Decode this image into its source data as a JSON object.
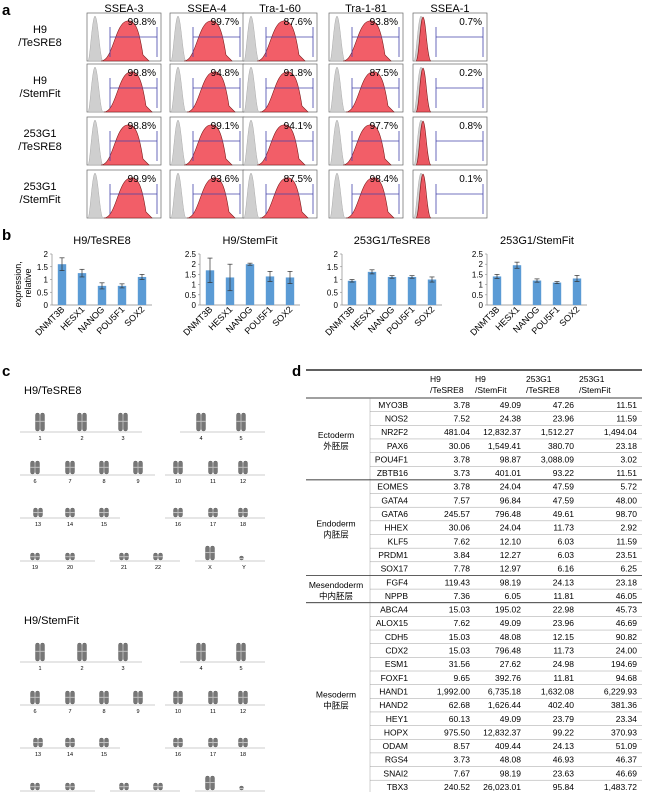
{
  "panel_a": {
    "letter": "a",
    "markers": [
      "SSEA-3",
      "SSEA-4",
      "Tra-1-60",
      "Tra-1-81",
      "SSEA-1"
    ],
    "rows": [
      {
        "label": [
          "H9",
          "/TeSRE8"
        ],
        "values": [
          "99.8%",
          "99.7%",
          "87.6%",
          "93.8%",
          "0.7%"
        ]
      },
      {
        "label": [
          "H9",
          "/StemFit"
        ],
        "values": [
          "99.8%",
          "94.8%",
          "91.8%",
          "87.5%",
          "0.2%"
        ]
      },
      {
        "label": [
          "253G1",
          "/TeSRE8"
        ],
        "values": [
          "98.8%",
          "99.1%",
          "94.1%",
          "97.7%",
          "0.8%"
        ]
      },
      {
        "label": [
          "253G1",
          "/StemFit"
        ],
        "values": [
          "99.9%",
          "93.6%",
          "87.5%",
          "98.4%",
          "0.1%"
        ]
      }
    ],
    "colors": {
      "stained": "#f0424e",
      "control": "#cfcfcf",
      "gate": "#4444aa"
    }
  },
  "panel_b": {
    "letter": "b",
    "ylabel": "expression,\nrelative",
    "color": "#5b9bd5"
  },
  "chart_data": [
    {
      "type": "bar",
      "title": "H9/TeSRE8",
      "categories": [
        "DNMT3B",
        "HESX1",
        "NANOG",
        "POU5F1",
        "SOX2"
      ],
      "values": [
        1.6,
        1.25,
        0.75,
        0.75,
        1.1
      ],
      "errors": [
        0.25,
        0.15,
        0.12,
        0.08,
        0.1
      ],
      "ylim": [
        0,
        2
      ],
      "yticks": [
        "0",
        "0.5",
        "1",
        "1.5",
        "2"
      ]
    },
    {
      "type": "bar",
      "title": "H9/StemFit",
      "categories": [
        "DNMT3B",
        "HESX1",
        "NANOG",
        "POU5F1",
        "SOX2"
      ],
      "values": [
        1.7,
        1.35,
        2.0,
        1.4,
        1.35
      ],
      "errors": [
        0.6,
        0.65,
        0.05,
        0.25,
        0.3
      ],
      "ylim": [
        0,
        2.5
      ],
      "yticks": [
        "0",
        "0.5",
        "1",
        "1.5",
        "2",
        "2.5"
      ]
    },
    {
      "type": "bar",
      "title": "253G1/TeSRE8",
      "categories": [
        "DNMT3B",
        "HESX1",
        "NANOG",
        "POU5F1",
        "SOX2"
      ],
      "values": [
        0.95,
        1.3,
        1.1,
        1.1,
        1.0
      ],
      "errors": [
        0.05,
        0.08,
        0.05,
        0.05,
        0.1
      ],
      "ylim": [
        0,
        2
      ],
      "yticks": [
        "0",
        "0.5",
        "1",
        "1.5",
        "2"
      ]
    },
    {
      "type": "bar",
      "title": "253G1/StemFit",
      "categories": [
        "DNMT3B",
        "HESX1",
        "NANOG",
        "POU5F1",
        "SOX2"
      ],
      "values": [
        1.4,
        1.95,
        1.2,
        1.1,
        1.3
      ],
      "errors": [
        0.1,
        0.15,
        0.08,
        0.05,
        0.15
      ],
      "ylim": [
        0,
        2.5
      ],
      "yticks": [
        "0",
        "0.5",
        "1",
        "1.5",
        "2",
        "2.5"
      ]
    }
  ],
  "panel_c": {
    "letter": "c",
    "karyotypes": [
      {
        "title": "H9/TeSRE8"
      },
      {
        "title": "H9/StemFit"
      }
    ],
    "row1": [
      "1",
      "2",
      "3",
      "4",
      "5"
    ],
    "row2": [
      "6",
      "7",
      "8",
      "9",
      "10",
      "11",
      "12"
    ],
    "row3": [
      "13",
      "14",
      "15",
      "16",
      "17",
      "18"
    ],
    "row4": [
      "19",
      "20",
      "21",
      "22",
      "X",
      "Y"
    ]
  },
  "panel_d": {
    "letter": "d",
    "headers": [
      [
        "H9",
        "/TeSRE8"
      ],
      [
        "H9",
        "/StemFit"
      ],
      [
        "253G1",
        "/TeSRE8"
      ],
      [
        "253G1",
        "/StemFit"
      ]
    ],
    "groups": [
      {
        "name": [
          "Ectoderm",
          "外胚层"
        ],
        "rows": [
          [
            "MYO3B",
            "3.78",
            "49.09",
            "47.26",
            "11.51"
          ],
          [
            "NOS2",
            "7.52",
            "24.38",
            "23.96",
            "11.59"
          ],
          [
            "NR2F2",
            "481.04",
            "12,832.37",
            "1,512.27",
            "1,494.04"
          ],
          [
            "PAX6",
            "30.06",
            "1,549.41",
            "380.70",
            "23.18"
          ],
          [
            "POU4F1",
            "3.78",
            "98.87",
            "3,088.09",
            "3.02"
          ],
          [
            "ZBTB16",
            "3.73",
            "401.01",
            "93.22",
            "11.51"
          ]
        ]
      },
      {
        "name": [
          "Endoderm",
          "内胚层"
        ],
        "rows": [
          [
            "EOMES",
            "3.78",
            "24.04",
            "47.59",
            "5.72"
          ],
          [
            "GATA4",
            "7.57",
            "96.84",
            "47.59",
            "48.00"
          ],
          [
            "GATA6",
            "245.57",
            "796.48",
            "49.61",
            "98.70"
          ],
          [
            "HHEX",
            "30.06",
            "24.04",
            "11.73",
            "2.92"
          ],
          [
            "KLF5",
            "7.62",
            "12.10",
            "6.03",
            "11.59"
          ],
          [
            "PRDM1",
            "3.84",
            "12.27",
            "6.03",
            "23.51"
          ],
          [
            "SOX17",
            "7.78",
            "12.97",
            "6.16",
            "6.25"
          ]
        ]
      },
      {
        "name": [
          "Mesendoderm",
          "中内胚层"
        ],
        "rows": [
          [
            "FGF4",
            "119.43",
            "98.19",
            "24.13",
            "23.18"
          ],
          [
            "NPPB",
            "7.36",
            "6.05",
            "11.81",
            "46.05"
          ]
        ]
      },
      {
        "name": [
          "Mesoderm",
          "中胚层"
        ],
        "rows": [
          [
            "ABCA4",
            "15.03",
            "195.02",
            "22.98",
            "45.73"
          ],
          [
            "ALOX15",
            "7.62",
            "49.09",
            "23.96",
            "46.69"
          ],
          [
            "CDH5",
            "15.03",
            "48.08",
            "12.15",
            "90.82"
          ],
          [
            "CDX2",
            "15.03",
            "796.48",
            "11.73",
            "24.00"
          ],
          [
            "ESM1",
            "31.56",
            "27.62",
            "24.98",
            "194.69"
          ],
          [
            "FOXF1",
            "9.65",
            "392.76",
            "11.81",
            "94.68"
          ],
          [
            "HAND1",
            "1,992.00",
            "6,735.18",
            "1,632.08",
            "6,229.93"
          ],
          [
            "HAND2",
            "62.68",
            "1,626.44",
            "402.40",
            "381.36"
          ],
          [
            "HEY1",
            "60.13",
            "49.09",
            "23.79",
            "23.34"
          ],
          [
            "HOPX",
            "975.50",
            "12,832.37",
            "99.22",
            "370.93"
          ],
          [
            "ODAM",
            "8.57",
            "409.44",
            "24.13",
            "51.09"
          ],
          [
            "RGS4",
            "3.73",
            "48.08",
            "46.93",
            "46.37"
          ],
          [
            "SNAI2",
            "7.67",
            "98.19",
            "23.63",
            "46.69"
          ],
          [
            "TBX3",
            "240.52",
            "26,023.01",
            "95.84",
            "1,483.72"
          ]
        ]
      }
    ]
  }
}
